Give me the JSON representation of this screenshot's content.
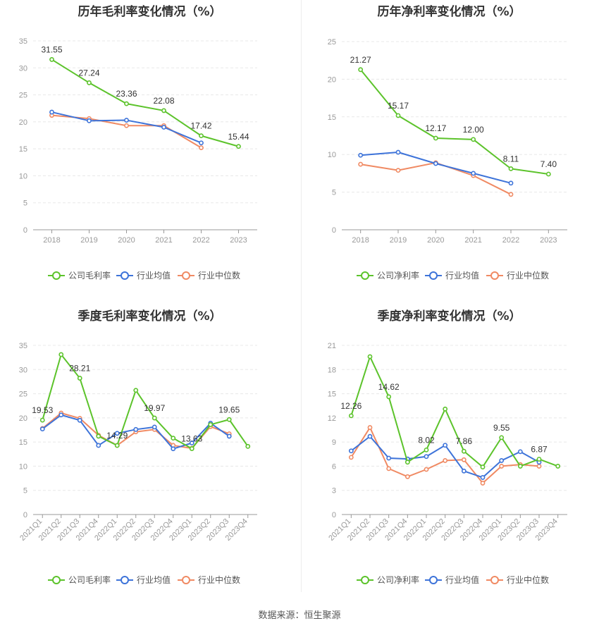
{
  "source": "数据来源：恒生聚源",
  "colors": {
    "company": "#5cc32b",
    "avg": "#3d73d9",
    "median": "#f08a63"
  },
  "chart_data": [
    {
      "id": "annual-gross",
      "type": "line",
      "title": "历年毛利率变化情况（%）",
      "categories": [
        "2018",
        "2019",
        "2020",
        "2021",
        "2022",
        "2023"
      ],
      "ylim": [
        0,
        35
      ],
      "yticks": [
        0,
        5,
        10,
        15,
        20,
        25,
        30,
        35
      ],
      "series": [
        {
          "name": "公司毛利率",
          "key": "company",
          "values": [
            31.55,
            27.24,
            23.36,
            22.08,
            17.42,
            15.44
          ],
          "labels": [
            "31.55",
            "27.24",
            "23.36",
            "22.08",
            "17.42",
            "15.44"
          ]
        },
        {
          "name": "行业均值",
          "key": "avg",
          "values": [
            21.8,
            20.2,
            20.3,
            19.0,
            16.1,
            null
          ]
        },
        {
          "name": "行业中位数",
          "key": "median",
          "values": [
            21.2,
            20.6,
            19.3,
            19.3,
            15.2,
            null
          ]
        }
      ]
    },
    {
      "id": "annual-net",
      "type": "line",
      "title": "历年净利率变化情况（%）",
      "categories": [
        "2018",
        "2019",
        "2020",
        "2021",
        "2022",
        "2023"
      ],
      "ylim": [
        0,
        25
      ],
      "yticks": [
        0,
        5,
        10,
        15,
        20,
        25
      ],
      "series": [
        {
          "name": "公司净利率",
          "key": "company",
          "values": [
            21.27,
            15.17,
            12.17,
            12.0,
            8.11,
            7.4
          ],
          "labels": [
            "21.27",
            "15.17",
            "12.17",
            "12.00",
            "8.11",
            "7.40"
          ]
        },
        {
          "name": "行业均值",
          "key": "avg",
          "values": [
            9.9,
            10.3,
            8.8,
            7.5,
            6.2,
            null
          ]
        },
        {
          "name": "行业中位数",
          "key": "median",
          "values": [
            8.7,
            7.9,
            8.9,
            7.2,
            4.7,
            null
          ]
        }
      ]
    },
    {
      "id": "quarterly-gross",
      "type": "line",
      "title": "季度毛利率变化情况（%）",
      "categories": [
        "2021Q1",
        "2021Q2",
        "2021Q3",
        "2021Q4",
        "2022Q1",
        "2022Q2",
        "2022Q3",
        "2022Q4",
        "2023Q1",
        "2023Q2",
        "2023Q3",
        "2023Q4"
      ],
      "ylim": [
        0,
        35
      ],
      "yticks": [
        0,
        5,
        10,
        15,
        20,
        25,
        30,
        35
      ],
      "series": [
        {
          "name": "公司毛利率",
          "key": "company",
          "values": [
            19.53,
            33.1,
            28.21,
            16.2,
            14.29,
            25.7,
            19.97,
            15.8,
            13.63,
            18.6,
            19.65,
            14.1
          ],
          "labels": [
            "19.53",
            "",
            "28.21",
            "",
            "14.29",
            "",
            "19.97",
            "",
            "13.63",
            "",
            "19.65",
            ""
          ]
        },
        {
          "name": "行业均值",
          "key": "avg",
          "values": [
            17.7,
            20.6,
            19.5,
            14.3,
            16.8,
            17.6,
            18.1,
            13.6,
            14.8,
            18.9,
            16.2,
            null
          ]
        },
        {
          "name": "行业中位数",
          "key": "median",
          "values": [
            17.8,
            21.0,
            19.9,
            16.4,
            14.3,
            17.1,
            17.6,
            14.3,
            13.7,
            18.2,
            16.7,
            null
          ]
        }
      ]
    },
    {
      "id": "quarterly-net",
      "type": "line",
      "title": "季度净利率变化情况（%）",
      "categories": [
        "2021Q1",
        "2021Q2",
        "2021Q3",
        "2021Q4",
        "2022Q1",
        "2022Q2",
        "2022Q3",
        "2022Q4",
        "2023Q1",
        "2023Q2",
        "2023Q3",
        "2023Q4"
      ],
      "ylim": [
        0,
        21
      ],
      "yticks": [
        0,
        3,
        6,
        9,
        12,
        15,
        18,
        21
      ],
      "series": [
        {
          "name": "公司净利率",
          "key": "company",
          "values": [
            12.26,
            19.6,
            14.62,
            6.5,
            8.02,
            13.1,
            7.86,
            5.9,
            9.55,
            6.0,
            6.87,
            6.0
          ],
          "labels": [
            "12.26",
            "",
            "14.62",
            "",
            "8.02",
            "",
            "7.86",
            "",
            "9.55",
            "",
            "6.87",
            ""
          ]
        },
        {
          "name": "行业均值",
          "key": "avg",
          "values": [
            7.9,
            9.7,
            7.0,
            6.9,
            7.2,
            8.6,
            5.4,
            4.6,
            6.7,
            7.8,
            6.5,
            null
          ]
        },
        {
          "name": "行业中位数",
          "key": "median",
          "values": [
            7.1,
            10.8,
            5.7,
            4.7,
            5.6,
            6.7,
            6.8,
            3.9,
            6.0,
            6.2,
            6.0,
            null
          ]
        }
      ]
    }
  ]
}
